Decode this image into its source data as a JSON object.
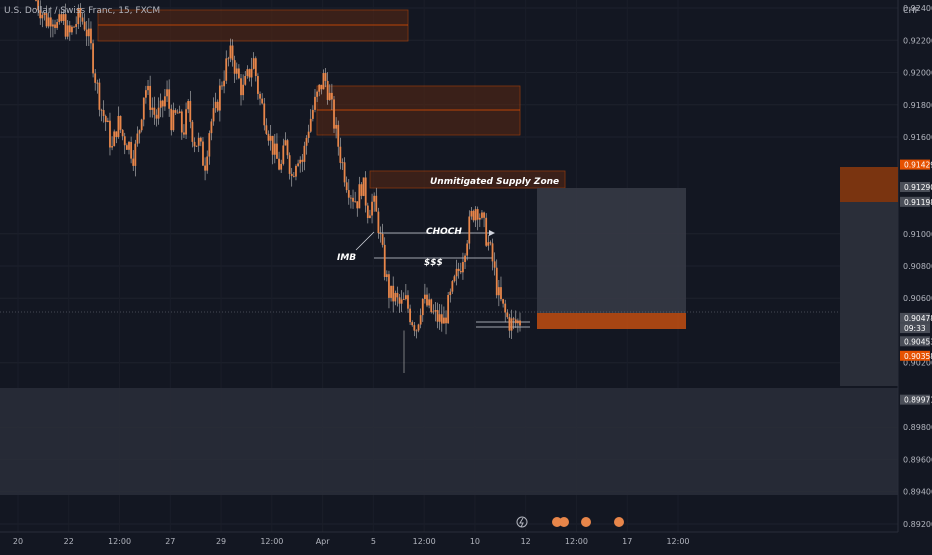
{
  "header": {
    "symbol": "U.S. Dollar / Swiss Franc, 15, FXCM"
  },
  "currency": "CHF",
  "colors": {
    "bg": "#131722",
    "candle": "#e8864a",
    "wick": "#c8c8c8",
    "zone_fill": "#5a2812",
    "zone_border": "#e65100",
    "box_fill": "#2a2e39",
    "tag_orange": "#e65100",
    "tag_gray": "#4a4e58"
  },
  "chart_data": {
    "type": "candlestick",
    "y_range": [
      0.8915,
      0.9245
    ],
    "y_ticks": [
      {
        "value": 0.924,
        "label": "0.92400"
      },
      {
        "value": 0.922,
        "label": "0.92200"
      },
      {
        "value": 0.92,
        "label": "0.92000"
      },
      {
        "value": 0.918,
        "label": "0.91800"
      },
      {
        "value": 0.916,
        "label": "0.91600"
      },
      {
        "value": 0.91,
        "label": "0.91000"
      },
      {
        "value": 0.908,
        "label": "0.90800"
      },
      {
        "value": 0.906,
        "label": "0.90600"
      },
      {
        "value": 0.902,
        "label": "0.90200"
      },
      {
        "value": 0.898,
        "label": "0.89800"
      },
      {
        "value": 0.896,
        "label": "0.89600"
      },
      {
        "value": 0.894,
        "label": "0.89400"
      },
      {
        "value": 0.892,
        "label": "0.89200"
      }
    ],
    "x_ticks": [
      "20",
      "22",
      "12:00",
      "27",
      "29",
      "12:00",
      "Apr",
      "5",
      "12:00",
      "10",
      "12",
      "12:00",
      "17",
      "12:00"
    ],
    "price_path": [
      [
        0.9245,
        0.9238
      ],
      [
        0.9232,
        0.9236
      ],
      [
        0.9228,
        0.9233
      ],
      [
        0.9222,
        0.9229
      ],
      [
        0.9235,
        0.923
      ],
      [
        0.9217,
        0.9195
      ],
      [
        0.9178,
        0.9168
      ],
      [
        0.9152,
        0.917
      ],
      [
        0.916,
        0.9156
      ],
      [
        0.9148,
        0.9165
      ],
      [
        0.9192,
        0.9182
      ],
      [
        0.9172,
        0.9176
      ],
      [
        0.9188,
        0.9168
      ],
      [
        0.9175,
        0.9162
      ],
      [
        0.9178,
        0.9158
      ],
      [
        0.9156,
        0.9142
      ],
      [
        0.9168,
        0.9175
      ],
      [
        0.9192,
        0.9205
      ],
      [
        0.9212,
        0.9198
      ],
      [
        0.9188,
        0.9198
      ],
      [
        0.9208,
        0.9185
      ],
      [
        0.9174,
        0.916
      ],
      [
        0.9148,
        0.914
      ],
      [
        0.9158,
        0.9135
      ],
      [
        0.915,
        0.9145
      ],
      [
        0.9165,
        0.9178
      ],
      [
        0.9188,
        0.9198
      ],
      [
        0.9185,
        0.9165
      ],
      [
        0.9148,
        0.9134
      ],
      [
        0.9125,
        0.912
      ],
      [
        0.9132,
        0.9115
      ],
      [
        0.912,
        0.9105
      ],
      [
        0.908,
        0.9062
      ],
      [
        0.906,
        0.9055
      ],
      [
        0.9058,
        0.9048
      ],
      [
        0.9042,
        0.906
      ],
      [
        0.9055,
        0.905
      ],
      [
        0.9047,
        0.9045
      ],
      [
        0.9058,
        0.907
      ],
      [
        0.908,
        0.9095
      ],
      [
        0.911,
        0.9118
      ],
      [
        0.9108,
        0.9096
      ],
      [
        0.9082,
        0.9062
      ],
      [
        0.9052,
        0.9045
      ],
      [
        0.9044,
        0.9046
      ]
    ],
    "last_price": 0.9046,
    "annotations": [
      {
        "text": "Unmitigated Supply Zone"
      },
      {
        "text": "CHOCH"
      },
      {
        "text": "IMB"
      },
      {
        "text": "$$$"
      }
    ],
    "price_tags": [
      {
        "label": "0.91429",
        "style": "orange",
        "value": 0.91429
      },
      {
        "label": "0.91290",
        "style": "gray",
        "value": 0.9129
      },
      {
        "label": "0.91198",
        "style": "gray",
        "value": 0.91198
      },
      {
        "label": "0.90478",
        "style": "gray",
        "value": 0.90478
      },
      {
        "label": "09:33",
        "style": "gray",
        "value": 0.90415
      },
      {
        "label": "0.90453",
        "style": "gray",
        "value": 0.90333
      },
      {
        "label": "0.90358",
        "style": "orange",
        "value": 0.90243
      },
      {
        "label": "0.89971",
        "style": "gray",
        "value": 0.89971
      }
    ]
  }
}
